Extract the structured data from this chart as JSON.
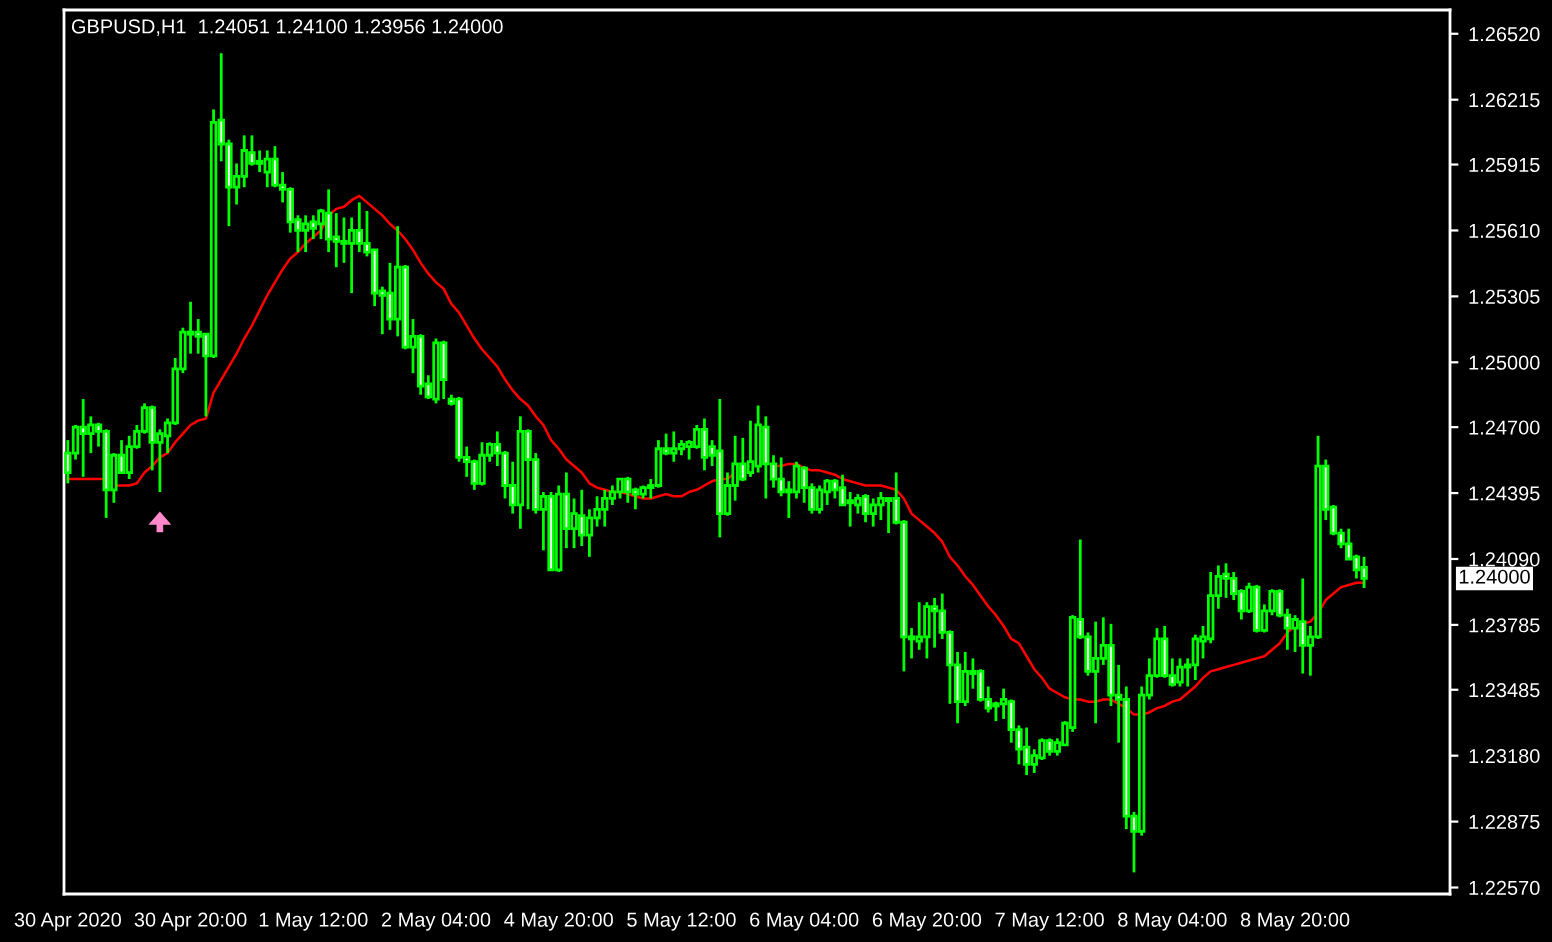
{
  "chart_data": {
    "type": "candlestick",
    "title": "GBPUSD,H1  1.24051 1.24100 1.23956 1.24000",
    "categories": [
      "30 Apr 2020",
      null,
      null,
      null,
      null,
      null,
      null,
      null,
      null,
      null,
      null,
      null,
      null,
      null,
      null,
      null,
      "30 Apr 20:00",
      null,
      null,
      null,
      null,
      null,
      null,
      null,
      null,
      null,
      null,
      null,
      null,
      null,
      null,
      null,
      "1 May 12:00",
      null,
      null,
      null,
      null,
      null,
      null,
      null,
      null,
      null,
      null,
      null,
      null,
      null,
      null,
      null,
      "2 May 04:00",
      null,
      null,
      null,
      null,
      null,
      null,
      null,
      null,
      null,
      null,
      null,
      null,
      null,
      null,
      null,
      "4 May 20:00",
      null,
      null,
      null,
      null,
      null,
      null,
      null,
      null,
      null,
      null,
      null,
      null,
      null,
      null,
      null,
      "5 May 12:00",
      null,
      null,
      null,
      null,
      null,
      null,
      null,
      null,
      null,
      null,
      null,
      null,
      null,
      null,
      null,
      "6 May 04:00",
      null,
      null,
      null,
      null,
      null,
      null,
      null,
      null,
      null,
      null,
      null,
      null,
      null,
      null,
      null,
      "6 May 20:00",
      null,
      null,
      null,
      null,
      null,
      null,
      null,
      null,
      null,
      null,
      null,
      null,
      null,
      null,
      null,
      "7 May 12:00",
      null,
      null,
      null,
      null,
      null,
      null,
      null,
      null,
      null,
      null,
      null,
      null,
      null,
      null,
      null,
      "8 May 04:00",
      null,
      null,
      null,
      null,
      null,
      null,
      null,
      null,
      null,
      null,
      null,
      null,
      null,
      null,
      null,
      "8 May 20:00",
      null,
      null,
      null,
      null,
      null,
      null,
      null,
      null,
      null
    ],
    "series": [
      {
        "type": "line",
        "color": "#ff0000",
        "values": [
          1.2446,
          1.2446,
          1.2446,
          1.2446,
          1.2446,
          1.2446,
          1.2443,
          1.2443,
          1.2443,
          1.2444,
          1.2449,
          1.2452,
          1.2456,
          1.2458,
          1.2463,
          1.2467,
          1.2471,
          1.2473,
          1.2474,
          1.2486,
          1.2492,
          1.2498,
          1.2504,
          1.2511,
          1.2517,
          1.2524,
          1.2531,
          1.2537,
          1.2543,
          1.2548,
          1.2551,
          1.2555,
          1.2558,
          1.2561,
          1.2568,
          1.2571,
          1.2572,
          1.2575,
          1.2577,
          1.2574,
          1.2571,
          1.2568,
          1.2564,
          1.2561,
          1.2557,
          1.2552,
          1.2546,
          1.2541,
          1.2537,
          1.2534,
          1.2527,
          1.2523,
          1.2517,
          1.2511,
          1.2506,
          1.2502,
          1.2498,
          1.2492,
          1.2487,
          1.2483,
          1.248,
          1.2475,
          1.2471,
          1.2464,
          1.246,
          1.2455,
          1.2452,
          1.2449,
          1.2444,
          1.2442,
          1.2441,
          1.244,
          1.244,
          1.2439,
          1.2438,
          1.2437,
          1.2437,
          1.2438,
          1.2439,
          1.2438,
          1.2438,
          1.244,
          1.2441,
          1.2443,
          1.2445,
          1.2446,
          1.2446,
          1.2449,
          null,
          null,
          null,
          null,
          1.2452,
          1.2452,
          1.2453,
          1.2453,
          1.2451,
          1.245,
          1.245,
          1.2449,
          1.2448,
          1.2446,
          1.2445,
          1.2444,
          1.2443,
          1.2443,
          1.2443,
          1.2442,
          1.2441,
          1.2437,
          1.243,
          1.2427,
          1.2424,
          1.2421,
          1.2417,
          1.241,
          1.2406,
          1.2401,
          1.2397,
          1.2392,
          1.2387,
          1.2383,
          1.2378,
          1.2372,
          1.237,
          1.2364,
          1.2358,
          1.2354,
          1.2349,
          1.2347,
          1.2345,
          1.2344,
          1.2344,
          1.2343,
          1.2343,
          1.2344,
          1.2344,
          1.2342,
          1.234,
          1.2337,
          1.2337,
          1.2338,
          1.234,
          1.2341,
          1.2343,
          1.2344,
          1.2347,
          1.235,
          1.2354,
          1.2357,
          1.2358,
          1.2359,
          1.236,
          1.2361,
          1.2362,
          1.2363,
          1.2364,
          1.2367,
          1.237,
          1.2375,
          1.2378,
          1.2379,
          1.238,
          1.2384,
          1.239,
          1.2393,
          1.2396,
          1.2397,
          1.2398,
          1.2398
        ]
      }
    ],
    "color": "#00ff00",
    "ohlc": [
      [
        1.2458,
        1.2464,
        1.2444,
        1.2449
      ],
      [
        1.2458,
        1.2471,
        1.2455,
        1.247
      ],
      [
        1.247,
        1.2483,
        1.2447,
        1.2467
      ],
      [
        1.2467,
        1.2475,
        1.2458,
        1.2471
      ],
      [
        1.2471,
        1.2472,
        1.2461,
        1.2468
      ],
      [
        1.2468,
        1.2469,
        1.2428,
        1.2441
      ],
      [
        1.2441,
        1.2458,
        1.2435,
        1.2457
      ],
      [
        1.2457,
        1.2464,
        1.2449,
        1.2449
      ],
      [
        1.2449,
        1.2466,
        1.2446,
        1.2461
      ],
      [
        1.2461,
        1.2471,
        1.246,
        1.2468
      ],
      [
        1.2468,
        1.2481,
        1.2467,
        1.2479
      ],
      [
        1.2479,
        1.248,
        1.245,
        1.2463
      ],
      [
        1.2463,
        1.2469,
        1.244,
        1.2467
      ],
      [
        1.2466,
        1.2474,
        1.2458,
        1.2472
      ],
      [
        1.2472,
        1.2502,
        1.2471,
        1.2497
      ],
      [
        1.2497,
        1.2516,
        1.2495,
        1.2514
      ],
      [
        1.2513,
        1.2528,
        1.2504,
        1.2514
      ],
      [
        1.2514,
        1.252,
        1.2504,
        1.2512
      ],
      [
        1.2513,
        1.2513,
        1.2475,
        1.2503
      ],
      [
        1.2503,
        1.2617,
        1.2502,
        1.2611
      ],
      [
        1.2612,
        1.2643,
        1.2593,
        1.2601
      ],
      [
        1.2601,
        1.2603,
        1.2563,
        1.2581
      ],
      [
        1.2581,
        1.2592,
        1.2573,
        1.2586
      ],
      [
        1.2586,
        1.2605,
        1.2581,
        1.2598
      ],
      [
        1.2597,
        1.2605,
        1.2591,
        1.2592
      ],
      [
        1.2593,
        1.2598,
        1.2588,
        1.2592
      ],
      [
        1.2588,
        1.2598,
        1.2581,
        1.2594
      ],
      [
        1.2594,
        1.26,
        1.2581,
        1.2582
      ],
      [
        1.2582,
        1.2588,
        1.2574,
        1.258
      ],
      [
        1.258,
        1.2581,
        1.256,
        1.2565
      ],
      [
        1.2566,
        1.2568,
        1.2551,
        1.2561
      ],
      [
        1.2561,
        1.2568,
        1.2551,
        1.2564
      ],
      [
        1.2565,
        1.2568,
        1.2557,
        1.2562
      ],
      [
        1.2564,
        1.2571,
        1.2557,
        1.257
      ],
      [
        1.2569,
        1.258,
        1.2551,
        1.2557
      ],
      [
        1.2558,
        1.2569,
        1.2544,
        1.2556
      ],
      [
        1.2556,
        1.2567,
        1.2546,
        1.2555
      ],
      [
        1.2555,
        1.2567,
        1.2532,
        1.2561
      ],
      [
        1.2561,
        1.2574,
        1.2551,
        1.2555
      ],
      [
        1.2555,
        1.257,
        1.2549,
        1.2551
      ],
      [
        1.2552,
        1.2552,
        1.2526,
        1.2532
      ],
      [
        1.2533,
        1.2535,
        1.2513,
        1.2531
      ],
      [
        1.2532,
        1.2546,
        1.2515,
        1.252
      ],
      [
        1.252,
        1.2563,
        1.2512,
        1.2544
      ],
      [
        1.2544,
        1.2545,
        1.2506,
        1.2507
      ],
      [
        1.2507,
        1.252,
        1.2495,
        1.2512
      ],
      [
        1.2512,
        1.2513,
        1.2485,
        1.2489
      ],
      [
        1.249,
        1.2494,
        1.2483,
        1.2484
      ],
      [
        1.2483,
        1.2511,
        1.2481,
        1.2509
      ],
      [
        1.2509,
        1.251,
        1.2483,
        1.2492
      ],
      [
        1.2483,
        1.2485,
        1.248,
        1.2481
      ],
      [
        1.2483,
        1.2484,
        1.2454,
        1.2456
      ],
      [
        1.2456,
        1.2461,
        1.2447,
        1.2454
      ],
      [
        1.2454,
        1.2455,
        1.2441,
        1.2444
      ],
      [
        1.2444,
        1.2463,
        1.2443,
        1.2457
      ],
      [
        1.2457,
        1.2463,
        1.2454,
        1.2462
      ],
      [
        1.2462,
        1.2468,
        1.2452,
        1.2458
      ],
      [
        1.2458,
        1.2459,
        1.2437,
        1.2443
      ],
      [
        1.2443,
        1.2454,
        1.243,
        1.2434
      ],
      [
        1.2434,
        1.2475,
        1.2423,
        1.2468
      ],
      [
        1.2468,
        1.2469,
        1.2432,
        1.2455
      ],
      [
        1.2455,
        1.2458,
        1.243,
        1.2432
      ],
      [
        1.2432,
        1.244,
        1.2413,
        1.2438
      ],
      [
        1.2438,
        1.244,
        1.2404,
        1.2404
      ],
      [
        1.2404,
        1.2443,
        1.2403,
        1.2439
      ],
      [
        1.2439,
        1.2449,
        1.2414,
        1.2423
      ],
      [
        1.2423,
        1.2437,
        1.2414,
        1.243
      ],
      [
        1.2429,
        1.2441,
        1.2415,
        1.242
      ],
      [
        1.242,
        1.2432,
        1.241,
        1.2428
      ],
      [
        1.2428,
        1.2438,
        1.2424,
        1.2432
      ],
      [
        1.2432,
        1.2441,
        1.2424,
        1.2437
      ],
      [
        1.2437,
        1.2443,
        1.2434,
        1.244
      ],
      [
        1.244,
        1.2446,
        1.2437,
        1.2446
      ],
      [
        1.2446,
        1.2447,
        1.2435,
        1.244
      ],
      [
        1.2441,
        1.2442,
        1.2432,
        1.2439
      ],
      [
        1.2439,
        1.2443,
        1.2437,
        1.2442
      ],
      [
        1.2442,
        1.2446,
        1.2437,
        1.2443
      ],
      [
        1.2443,
        1.2464,
        1.2442,
        1.246
      ],
      [
        1.246,
        1.2467,
        1.2457,
        1.2458
      ],
      [
        1.2458,
        1.2468,
        1.2454,
        1.246
      ],
      [
        1.246,
        1.2464,
        1.2457,
        1.2462
      ],
      [
        1.2461,
        1.2464,
        1.2455,
        1.2463
      ],
      [
        1.2461,
        1.2471,
        1.246,
        1.2469
      ],
      [
        1.2469,
        1.2474,
        1.245,
        1.2456
      ],
      [
        1.2461,
        1.2464,
        1.2452,
        1.2457
      ],
      [
        1.2459,
        1.2483,
        1.2419,
        1.243
      ],
      [
        1.243,
        1.2449,
        1.2429,
        1.2443
      ],
      [
        1.2443,
        1.2466,
        1.2436,
        1.2453
      ],
      [
        1.2453,
        1.2465,
        1.2445,
        1.2446
      ],
      [
        1.2449,
        1.2473,
        1.2447,
        1.2454
      ],
      [
        1.2452,
        1.248,
        1.2449,
        1.2471
      ],
      [
        1.247,
        1.2475,
        1.2437,
        1.2453
      ],
      [
        1.2453,
        1.2457,
        1.2442,
        1.2446
      ],
      [
        1.2446,
        1.2456,
        1.2438,
        1.244
      ],
      [
        1.2441,
        1.2445,
        1.2428,
        1.244
      ],
      [
        1.244,
        1.2454,
        1.2437,
        1.2452
      ],
      [
        1.2451,
        1.2452,
        1.2435,
        1.2442
      ],
      [
        1.2442,
        1.2444,
        1.243,
        1.2432
      ],
      [
        1.2432,
        1.2443,
        1.243,
        1.2441
      ],
      [
        1.244,
        1.2446,
        1.2434,
        1.2445
      ],
      [
        1.2445,
        1.2446,
        1.2437,
        1.2441
      ],
      [
        1.2442,
        1.2448,
        1.2434,
        1.2434
      ],
      [
        1.2436,
        1.244,
        1.2424,
        1.2435
      ],
      [
        1.2434,
        1.2439,
        1.243,
        1.2437
      ],
      [
        1.2438,
        1.2439,
        1.2426,
        1.243
      ],
      [
        1.243,
        1.2437,
        1.2424,
        1.2434
      ],
      [
        1.2434,
        1.244,
        1.2427,
        1.2437
      ],
      [
        1.2437,
        1.2437,
        1.2421,
        1.2436
      ],
      [
        1.2437,
        1.2449,
        1.2425,
        1.2426
      ],
      [
        1.2426,
        1.2427,
        1.2357,
        1.2373
      ],
      [
        1.2373,
        1.2377,
        1.2363,
        1.2372
      ],
      [
        1.2371,
        1.2389,
        1.2367,
        1.2373
      ],
      [
        1.2373,
        1.2389,
        1.2363,
        1.2387
      ],
      [
        1.2387,
        1.2391,
        1.2368,
        1.2385
      ],
      [
        1.2385,
        1.2393,
        1.2372,
        1.2375
      ],
      [
        1.2375,
        1.2376,
        1.2342,
        1.236
      ],
      [
        1.236,
        1.2366,
        1.2333,
        1.2343
      ],
      [
        1.2343,
        1.2366,
        1.2341,
        1.2357
      ],
      [
        1.2357,
        1.2363,
        1.2349,
        1.2356
      ],
      [
        1.2357,
        1.2358,
        1.2343,
        1.2344
      ],
      [
        1.2344,
        1.235,
        1.2338,
        1.234
      ],
      [
        1.2342,
        1.2343,
        1.2334,
        1.2341
      ],
      [
        1.2342,
        1.2349,
        1.2335,
        1.2344
      ],
      [
        1.2343,
        1.2344,
        1.2324,
        1.233
      ],
      [
        1.233,
        1.2332,
        1.2314,
        1.2321
      ],
      [
        1.2322,
        1.2331,
        1.2309,
        1.2314
      ],
      [
        1.2314,
        1.2321,
        1.231,
        1.2318
      ],
      [
        1.2317,
        1.2326,
        1.2316,
        1.2325
      ],
      [
        1.2325,
        1.2326,
        1.2318,
        1.232
      ],
      [
        1.232,
        1.2326,
        1.2318,
        1.2324
      ],
      [
        1.2323,
        1.2334,
        1.2323,
        1.2333
      ],
      [
        1.2331,
        1.2383,
        1.2329,
        1.2382
      ],
      [
        1.2381,
        1.2418,
        1.2372,
        1.2373
      ],
      [
        1.2373,
        1.2375,
        1.2355,
        1.2357
      ],
      [
        1.2357,
        1.238,
        1.2333,
        1.2363
      ],
      [
        1.2363,
        1.2382,
        1.236,
        1.2369
      ],
      [
        1.2369,
        1.2379,
        1.2341,
        1.2346
      ],
      [
        1.2346,
        1.236,
        1.2324,
        1.2344
      ],
      [
        1.2344,
        1.235,
        1.2284,
        1.229
      ],
      [
        1.229,
        1.2292,
        1.2264,
        1.2283
      ],
      [
        1.2283,
        1.235,
        1.2281,
        1.2346
      ],
      [
        1.2346,
        1.2363,
        1.2344,
        1.2355
      ],
      [
        1.2355,
        1.2377,
        1.2354,
        1.2372
      ],
      [
        1.2372,
        1.2378,
        1.2354,
        1.2355
      ],
      [
        1.2355,
        1.2363,
        1.235,
        1.2351
      ],
      [
        1.2352,
        1.2363,
        1.235,
        1.2359
      ],
      [
        1.2359,
        1.2363,
        1.235,
        1.236
      ],
      [
        1.236,
        1.2374,
        1.2353,
        1.2372
      ],
      [
        1.2371,
        1.2378,
        1.2363,
        1.2373
      ],
      [
        1.2372,
        1.2403,
        1.237,
        1.2392
      ],
      [
        1.2392,
        1.2406,
        1.2386,
        1.2401
      ],
      [
        1.2402,
        1.2407,
        1.2391,
        1.24
      ],
      [
        1.24,
        1.2403,
        1.239,
        1.2393
      ],
      [
        1.2394,
        1.2395,
        1.2381,
        1.2385
      ],
      [
        1.2385,
        1.2398,
        1.2384,
        1.2396
      ],
      [
        1.2396,
        1.2397,
        1.2375,
        1.2376
      ],
      [
        1.2376,
        1.2388,
        1.2375,
        1.2385
      ],
      [
        1.2385,
        1.2395,
        1.2383,
        1.2394
      ],
      [
        1.2394,
        1.2395,
        1.2382,
        1.2383
      ],
      [
        1.2383,
        1.2386,
        1.2367,
        1.2377
      ],
      [
        1.2377,
        1.2383,
        1.2366,
        1.2381
      ],
      [
        1.238,
        1.24,
        1.2356,
        1.2369
      ],
      [
        1.2369,
        1.2378,
        1.2355,
        1.2373
      ],
      [
        1.2373,
        1.2466,
        1.2372,
        1.2452
      ],
      [
        1.2452,
        1.2455,
        1.2427,
        1.2432
      ],
      [
        1.2433,
        1.2434,
        1.242,
        1.2421
      ],
      [
        1.2421,
        1.2423,
        1.2414,
        1.2416
      ],
      [
        1.2416,
        1.2423,
        1.2409,
        1.2409
      ],
      [
        1.241,
        1.2411,
        1.24,
        1.2404
      ],
      [
        1.24051,
        1.241,
        1.23956,
        1.24
      ]
    ],
    "ylim": [
      1.2254,
      1.2663
    ],
    "yticks": [
      {
        "value": 1.2652,
        "label": "1.26520"
      },
      {
        "value": 1.26215,
        "label": "1.26215"
      },
      {
        "value": 1.25915,
        "label": "1.25915"
      },
      {
        "value": 1.2561,
        "label": "1.25610"
      },
      {
        "value": 1.25305,
        "label": "1.25305"
      },
      {
        "value": 1.25,
        "label": "1.25000"
      },
      {
        "value": 1.247,
        "label": "1.24700"
      },
      {
        "value": 1.24395,
        "label": "1.24395"
      },
      {
        "value": 1.2409,
        "label": "1.24090"
      },
      {
        "value": 1.23785,
        "label": "1.23785"
      },
      {
        "value": 1.23485,
        "label": "1.23485"
      },
      {
        "value": 1.2318,
        "label": "1.23180"
      },
      {
        "value": 1.22875,
        "label": "1.22875"
      },
      {
        "value": 1.2257,
        "label": "1.22570"
      }
    ],
    "annotations": [
      "1.24000"
    ],
    "grid": false,
    "legend": false
  }
}
